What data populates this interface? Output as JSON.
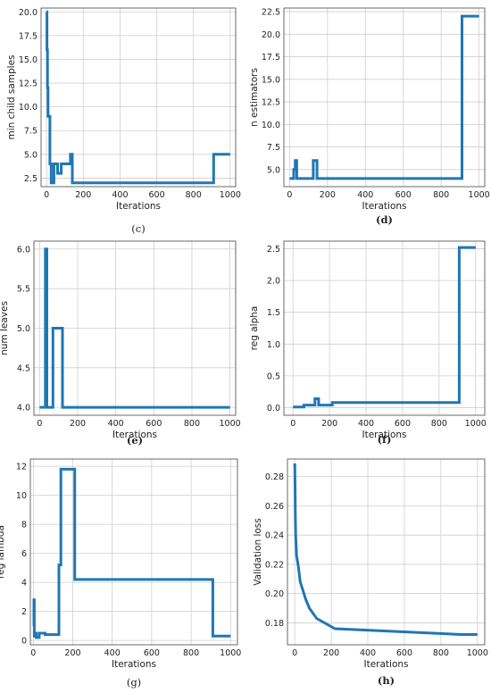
{
  "colors": {
    "line": "#1f77b4"
  },
  "chart_data": [
    {
      "panel": "c",
      "caption": "(c)",
      "caption_bold": false,
      "type": "line",
      "xlabel": "Iterations",
      "ylabel": "min child samples",
      "xlim": [
        -30,
        1030
      ],
      "ylim": [
        1.6,
        20.4
      ],
      "xticks": [
        "0",
        "200",
        "400",
        "600",
        "800",
        "1000"
      ],
      "yticks": [
        "2.5",
        "5.0",
        "7.5",
        "10.0",
        "12.5",
        "15.0",
        "17.5",
        "20.0"
      ],
      "xtick_values": [
        0,
        200,
        400,
        600,
        800,
        1000
      ],
      "ytick_values": [
        2.5,
        5,
        7.5,
        10,
        12.5,
        15,
        17.5,
        20
      ],
      "grid": true,
      "series": [
        {
          "x": [
            0,
            2,
            2,
            5,
            5,
            8,
            8,
            12,
            12,
            18,
            18,
            25,
            25,
            40,
            40,
            60,
            60,
            80,
            80,
            130,
            130,
            140,
            140,
            910,
            910,
            1000
          ],
          "y": [
            20,
            20,
            16,
            16,
            12,
            12,
            9,
            9,
            9,
            9,
            4,
            4,
            2,
            2,
            4,
            4,
            3,
            3,
            4,
            4,
            5,
            5,
            2,
            2,
            5,
            5
          ]
        }
      ]
    },
    {
      "panel": "d",
      "caption": "(d)",
      "caption_bold": true,
      "type": "line",
      "xlabel": "Iterations",
      "ylabel": "n estimators",
      "xlim": [
        -30,
        1030
      ],
      "ylim": [
        3.1,
        22.9
      ],
      "xticks": [
        "0",
        "200",
        "400",
        "600",
        "800",
        "1000"
      ],
      "yticks": [
        "5.0",
        "7.5",
        "10.0",
        "12.5",
        "15.0",
        "17.5",
        "20.0",
        "22.5"
      ],
      "xtick_values": [
        0,
        200,
        400,
        600,
        800,
        1000
      ],
      "ytick_values": [
        5,
        7.5,
        10,
        12.5,
        15,
        17.5,
        20,
        22.5
      ],
      "grid": true,
      "series": [
        {
          "x": [
            0,
            22,
            22,
            30,
            30,
            38,
            38,
            45,
            45,
            125,
            125,
            145,
            145,
            910,
            910,
            1000
          ],
          "y": [
            4,
            4,
            5,
            5,
            6,
            6,
            4,
            4,
            4,
            4,
            6,
            6,
            4,
            4,
            22,
            22
          ]
        }
      ]
    },
    {
      "panel": "e",
      "caption": "(e)",
      "caption_bold": true,
      "type": "line",
      "xlabel": "Iterations",
      "ylabel": "num leaves",
      "xlim": [
        -30,
        1030
      ],
      "ylim": [
        3.9,
        6.1
      ],
      "xticks": [
        "0",
        "200",
        "400",
        "600",
        "800",
        "1000"
      ],
      "yticks": [
        "4.0",
        "4.5",
        "5.0",
        "5.5",
        "6.0"
      ],
      "xtick_values": [
        0,
        200,
        400,
        600,
        800,
        1000
      ],
      "ytick_values": [
        4,
        4.5,
        5,
        5.5,
        6
      ],
      "grid": true,
      "series": [
        {
          "x": [
            0,
            30,
            30,
            38,
            38,
            70,
            70,
            120,
            120,
            1000
          ],
          "y": [
            4,
            4,
            6,
            6,
            4,
            4,
            5,
            5,
            4,
            4
          ]
        }
      ]
    },
    {
      "panel": "f",
      "caption": "(f)",
      "caption_bold": true,
      "type": "line",
      "xlabel": "Iterations",
      "ylabel": "reg alpha",
      "xlim": [
        -50,
        1050
      ],
      "ylim": [
        -0.12,
        2.62
      ],
      "xticks": [
        "0",
        "200",
        "400",
        "600",
        "800",
        "1000"
      ],
      "yticks": [
        "0.0",
        "0.5",
        "1.0",
        "1.5",
        "2.0",
        "2.5"
      ],
      "xtick_values": [
        0,
        200,
        400,
        600,
        800,
        1000
      ],
      "ytick_values": [
        0,
        0.5,
        1,
        1.5,
        2,
        2.5
      ],
      "grid": true,
      "series": [
        {
          "x": [
            0,
            60,
            60,
            120,
            120,
            140,
            140,
            215,
            215,
            910,
            910,
            1000
          ],
          "y": [
            0.01,
            0.01,
            0.04,
            0.04,
            0.14,
            0.14,
            0.04,
            0.04,
            0.08,
            0.08,
            2.52,
            2.52
          ]
        }
      ]
    },
    {
      "panel": "g",
      "caption": "(g)",
      "caption_bold": false,
      "type": "line",
      "xlabel": "Iterations",
      "ylabel": "reg lambda",
      "xlim": [
        -15,
        1035
      ],
      "ylim": [
        -0.3,
        12.5
      ],
      "xticks": [
        "0",
        "200",
        "400",
        "600",
        "800",
        "1000"
      ],
      "yticks": [
        "0",
        "2",
        "4",
        "6",
        "8",
        "10",
        "12"
      ],
      "xtick_values": [
        0,
        200,
        400,
        600,
        800,
        1000
      ],
      "ytick_values": [
        0,
        2,
        4,
        6,
        8,
        10,
        12
      ],
      "grid": true,
      "series": [
        {
          "x": [
            0,
            3,
            3,
            5,
            5,
            8,
            8,
            15,
            15,
            30,
            30,
            60,
            60,
            130,
            130,
            140,
            140,
            150,
            150,
            210,
            210,
            910,
            910,
            1000
          ],
          "y": [
            1.0,
            1.0,
            2.8,
            2.8,
            0.3,
            0.3,
            0.5,
            0.5,
            0.2,
            0.2,
            0.5,
            0.5,
            0.4,
            0.4,
            5.2,
            5.2,
            11.8,
            11.8,
            11.8,
            11.8,
            4.2,
            4.2,
            0.3,
            0.3
          ]
        }
      ]
    },
    {
      "panel": "h",
      "caption": "(h)",
      "caption_bold": true,
      "type": "line",
      "xlabel": "Iterations",
      "ylabel": "Validation loss",
      "xlim": [
        -40,
        1040
      ],
      "ylim": [
        0.165,
        0.292
      ],
      "xticks": [
        "0",
        "200",
        "400",
        "600",
        "800",
        "1000"
      ],
      "yticks": [
        "0.18",
        "0.20",
        "0.22",
        "0.24",
        "0.26",
        "0.28"
      ],
      "xtick_values": [
        0,
        200,
        400,
        600,
        800,
        1000
      ],
      "ytick_values": [
        0.18,
        0.2,
        0.22,
        0.24,
        0.26,
        0.28
      ],
      "grid": true,
      "series": [
        {
          "x": [
            0,
            2,
            3,
            5,
            8,
            10,
            15,
            20,
            30,
            40,
            60,
            80,
            120,
            220,
            910,
            1000
          ],
          "y": [
            0.289,
            0.27,
            0.255,
            0.24,
            0.232,
            0.226,
            0.222,
            0.218,
            0.208,
            0.204,
            0.196,
            0.19,
            0.183,
            0.176,
            0.172,
            0.172
          ]
        }
      ]
    }
  ]
}
